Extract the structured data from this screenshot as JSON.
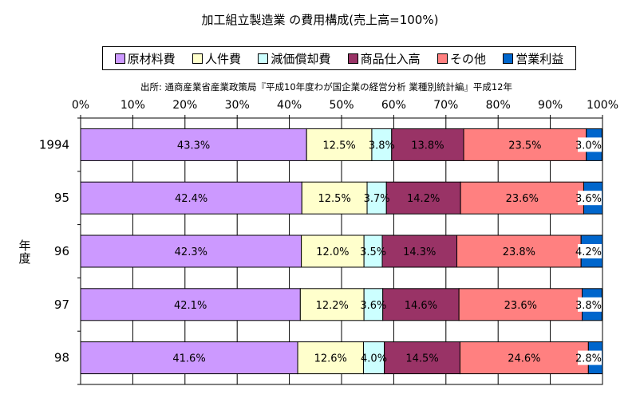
{
  "chart_data": {
    "type": "bar",
    "orientation": "horizontal",
    "stacked": true,
    "title": "加工組立製造業 の費用構成(売上高=100%)",
    "source": "出所: 通商産業省産業政策局『平成10年度わが国企業の経営分析 業種別統計編』平成12年",
    "ylabel": "年度",
    "xlim": [
      0,
      100
    ],
    "xticks": [
      "0%",
      "10%",
      "20%",
      "30%",
      "40%",
      "50%",
      "60%",
      "70%",
      "80%",
      "90%",
      "100%"
    ],
    "categories": [
      "1994",
      "95",
      "96",
      "97",
      "98"
    ],
    "legend_position": "top",
    "series": [
      {
        "name": "原材料費",
        "color": "#cc99ff",
        "values": [
          43.3,
          42.4,
          42.3,
          42.1,
          41.6
        ],
        "labels": [
          "43.3%",
          "42.4%",
          "42.3%",
          "42.1%",
          "41.6%"
        ]
      },
      {
        "name": "人件費",
        "color": "#ffffcc",
        "values": [
          12.5,
          12.5,
          12.0,
          12.2,
          12.6
        ],
        "labels": [
          "12.5%",
          "12.5%",
          "12.0%",
          "12.2%",
          "12.6%"
        ]
      },
      {
        "name": "減価償却費",
        "color": "#ccffff",
        "values": [
          3.8,
          3.7,
          3.5,
          3.6,
          4.0
        ],
        "labels": [
          "3.8%",
          "3.7%",
          "3.5%",
          "3.6%",
          "4.0%"
        ]
      },
      {
        "name": "商品仕入高",
        "color": "#993366",
        "values": [
          13.8,
          14.2,
          14.3,
          14.6,
          14.5
        ],
        "labels": [
          "13.8%",
          "14.2%",
          "14.3%",
          "14.6%",
          "14.5%"
        ]
      },
      {
        "name": "その他",
        "color": "#ff8080",
        "values": [
          23.5,
          23.6,
          23.8,
          23.6,
          24.6
        ],
        "labels": [
          "23.5%",
          "23.6%",
          "23.8%",
          "23.6%",
          "24.6%"
        ]
      },
      {
        "name": "営業利益",
        "color": "#0066cc",
        "values": [
          3.0,
          3.6,
          4.2,
          3.8,
          2.8
        ],
        "labels": [
          "3.0%",
          "3.6%",
          "4.2%",
          "3.8%",
          "2.8%"
        ]
      }
    ]
  }
}
